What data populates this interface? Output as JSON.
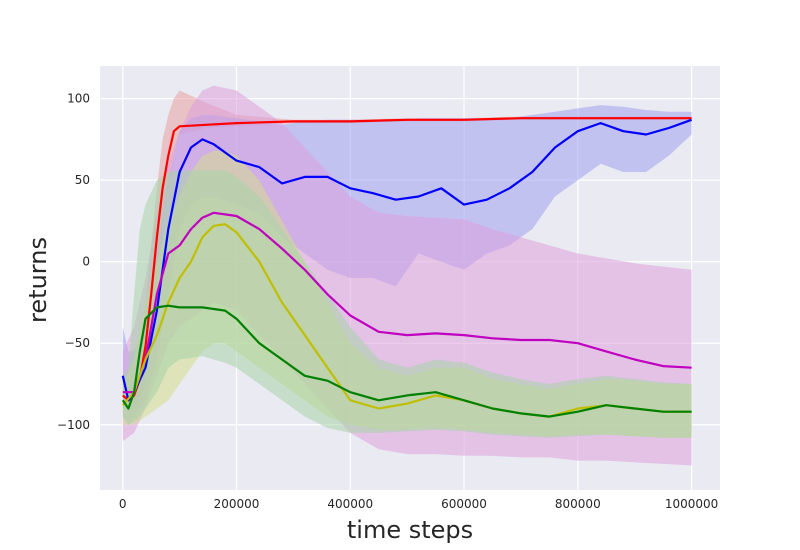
{
  "chart_data": {
    "type": "line",
    "title": "",
    "xlabel": "time steps",
    "ylabel": "returns",
    "xlim": [
      -40000,
      1050000
    ],
    "ylim": [
      -140,
      120
    ],
    "x_ticks": [
      0,
      200000,
      400000,
      600000,
      800000,
      1000000
    ],
    "x_tick_labels": [
      "0",
      "200000",
      "400000",
      "600000",
      "800000",
      "1000000"
    ],
    "y_ticks": [
      -100,
      -50,
      0,
      50,
      100
    ],
    "y_tick_labels": [
      "−100",
      "−50",
      "0",
      "50",
      "100"
    ],
    "grid": true,
    "legend": "none",
    "background": "#eaeaf2",
    "series": [
      {
        "color": "#ff0000",
        "band_color": "#e8a0a0",
        "x": [
          0,
          10000,
          20000,
          30000,
          40000,
          50000,
          60000,
          70000,
          80000,
          90000,
          100000,
          150000,
          200000,
          300000,
          400000,
          500000,
          600000,
          700000,
          800000,
          900000,
          1000000
        ],
        "y": [
          -82,
          -85,
          -82,
          -72,
          -52,
          -20,
          15,
          45,
          65,
          80,
          83,
          84,
          85,
          86,
          86,
          87,
          87,
          88,
          88,
          88,
          88
        ],
        "lower": [
          -88,
          -92,
          -90,
          -83,
          -75,
          -40,
          -10,
          20,
          45,
          65,
          78,
          82,
          83,
          85,
          85,
          86,
          86,
          87,
          87,
          87,
          87
        ],
        "upper": [
          -75,
          -78,
          -72,
          -55,
          -25,
          10,
          45,
          75,
          90,
          100,
          105,
          97,
          90,
          87,
          87,
          88,
          88,
          89,
          89,
          89,
          89
        ]
      },
      {
        "color": "#0000ff",
        "band_color": "#a0a0f0",
        "x": [
          0,
          10000,
          20000,
          40000,
          60000,
          80000,
          100000,
          120000,
          140000,
          160000,
          200000,
          240000,
          280000,
          320000,
          360000,
          400000,
          440000,
          480000,
          520000,
          560000,
          600000,
          640000,
          680000,
          720000,
          760000,
          800000,
          840000,
          880000,
          920000,
          960000,
          1000000
        ],
        "y": [
          -70,
          -85,
          -80,
          -65,
          -30,
          20,
          55,
          70,
          75,
          72,
          62,
          58,
          48,
          52,
          52,
          45,
          42,
          38,
          40,
          45,
          35,
          38,
          45,
          55,
          70,
          80,
          85,
          80,
          78,
          82,
          87
        ],
        "lower": [
          -95,
          -100,
          -95,
          -85,
          -60,
          -20,
          20,
          35,
          40,
          40,
          35,
          30,
          15,
          5,
          -5,
          -10,
          -10,
          -15,
          5,
          0,
          -5,
          5,
          10,
          20,
          40,
          50,
          60,
          55,
          55,
          65,
          78
        ],
        "upper": [
          -40,
          -55,
          -55,
          -40,
          5,
          50,
          80,
          88,
          90,
          90,
          88,
          86,
          84,
          86,
          87,
          87,
          87,
          86,
          88,
          88,
          88,
          88,
          88,
          90,
          92,
          94,
          96,
          95,
          93,
          92,
          92
        ]
      },
      {
        "color": "#bf00bf",
        "band_color": "#dda0dd",
        "x": [
          0,
          20000,
          40000,
          60000,
          80000,
          100000,
          120000,
          140000,
          160000,
          200000,
          240000,
          280000,
          320000,
          360000,
          400000,
          450000,
          500000,
          550000,
          600000,
          650000,
          700000,
          750000,
          800000,
          850000,
          900000,
          950000,
          1000000
        ],
        "y": [
          -80,
          -80,
          -60,
          -20,
          5,
          10,
          20,
          27,
          30,
          28,
          20,
          8,
          -5,
          -20,
          -33,
          -43,
          -45,
          -44,
          -45,
          -47,
          -48,
          -48,
          -50,
          -55,
          -60,
          -64,
          -65
        ],
        "lower": [
          -110,
          -105,
          -90,
          -70,
          -50,
          -40,
          -35,
          -30,
          -25,
          -30,
          -45,
          -60,
          -75,
          -90,
          -105,
          -115,
          -118,
          -118,
          -119,
          -119,
          -120,
          -120,
          -122,
          -122,
          -123,
          -124,
          -125
        ],
        "upper": [
          -55,
          -40,
          -10,
          30,
          60,
          80,
          95,
          105,
          108,
          105,
          95,
          85,
          70,
          55,
          40,
          30,
          28,
          27,
          26,
          20,
          15,
          10,
          5,
          2,
          -1,
          -3,
          -5
        ]
      },
      {
        "color": "#bfbf00",
        "band_color": "#d4dc8c",
        "x": [
          0,
          20000,
          40000,
          60000,
          80000,
          100000,
          120000,
          140000,
          160000,
          180000,
          200000,
          240000,
          280000,
          320000,
          360000,
          400000,
          450000,
          500000,
          550000,
          600000,
          650000,
          700000,
          750000,
          800000,
          850000,
          900000,
          950000,
          1000000
        ],
        "y": [
          -88,
          -80,
          -60,
          -45,
          -25,
          -10,
          0,
          15,
          22,
          23,
          18,
          0,
          -25,
          -45,
          -65,
          -85,
          -90,
          -87,
          -82,
          -85,
          -90,
          -93,
          -95,
          -90,
          -88,
          -90,
          -92,
          -92
        ],
        "lower": [
          -100,
          -100,
          -95,
          -90,
          -85,
          -75,
          -65,
          -55,
          -50,
          -50,
          -55,
          -65,
          -75,
          -85,
          -95,
          -100,
          -103,
          -103,
          -102,
          -103,
          -105,
          -106,
          -107,
          -106,
          -106,
          -107,
          -108,
          -108
        ],
        "upper": [
          -75,
          -60,
          -25,
          0,
          25,
          40,
          55,
          65,
          68,
          68,
          65,
          50,
          25,
          0,
          -25,
          -50,
          -65,
          -70,
          -65,
          -65,
          -72,
          -75,
          -78,
          -75,
          -72,
          -73,
          -75,
          -75
        ]
      },
      {
        "color": "#008000",
        "band_color": "#a8d4a8",
        "x": [
          0,
          10000,
          20000,
          30000,
          40000,
          60000,
          80000,
          100000,
          140000,
          180000,
          200000,
          240000,
          280000,
          320000,
          360000,
          400000,
          450000,
          500000,
          550000,
          600000,
          650000,
          700000,
          750000,
          800000,
          850000,
          900000,
          950000,
          1000000
        ],
        "y": [
          -85,
          -90,
          -80,
          -55,
          -35,
          -28,
          -27,
          -28,
          -28,
          -30,
          -35,
          -50,
          -60,
          -70,
          -73,
          -80,
          -85,
          -82,
          -80,
          -85,
          -90,
          -93,
          -95,
          -92,
          -88,
          -90,
          -92,
          -92
        ],
        "lower": [
          -95,
          -100,
          -98,
          -95,
          -90,
          -80,
          -65,
          -60,
          -58,
          -62,
          -65,
          -75,
          -85,
          -95,
          -102,
          -105,
          -105,
          -104,
          -103,
          -104,
          -106,
          -107,
          -108,
          -107,
          -106,
          -107,
          -108,
          -108
        ],
        "upper": [
          -70,
          -65,
          -20,
          20,
          35,
          50,
          55,
          56,
          56,
          56,
          52,
          40,
          20,
          0,
          -20,
          -40,
          -60,
          -65,
          -60,
          -62,
          -68,
          -72,
          -75,
          -72,
          -70,
          -72,
          -74,
          -75
        ]
      }
    ]
  }
}
